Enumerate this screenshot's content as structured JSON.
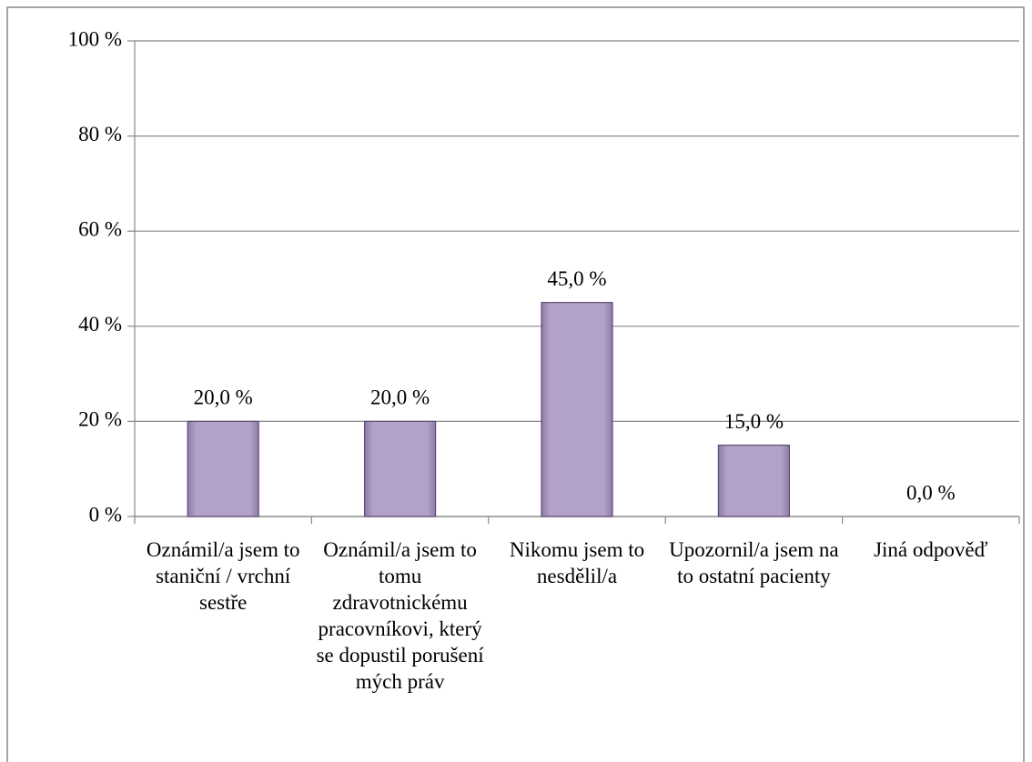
{
  "chart_data": {
    "type": "bar",
    "categories": [
      "Oznámil/a jsem to staniční / vrchní sestře",
      "Oznámil/a jsem to tomu zdravotnickému pracovníkovi, který se dopustil porušení mých práv",
      "Nikomu jsem to nesdělil/a",
      "Upozornil/a jsem na to ostatní pacienty",
      "Jiná odpověď"
    ],
    "values": [
      20,
      20,
      45,
      15,
      0
    ],
    "value_labels": [
      "20,0 %",
      "20,0 %",
      "45,0 %",
      "15,0 %",
      "0,0 %"
    ],
    "color": "#b3a2c7",
    "ylim": [
      0,
      100
    ],
    "yticks": [
      {
        "value": 0,
        "label": "0 %"
      },
      {
        "value": 20,
        "label": "20 %"
      },
      {
        "value": 40,
        "label": "40 %"
      },
      {
        "value": 60,
        "label": "60 %"
      },
      {
        "value": 80,
        "label": "80 %"
      },
      {
        "value": 100,
        "label": "100 %"
      }
    ],
    "grid": true
  }
}
